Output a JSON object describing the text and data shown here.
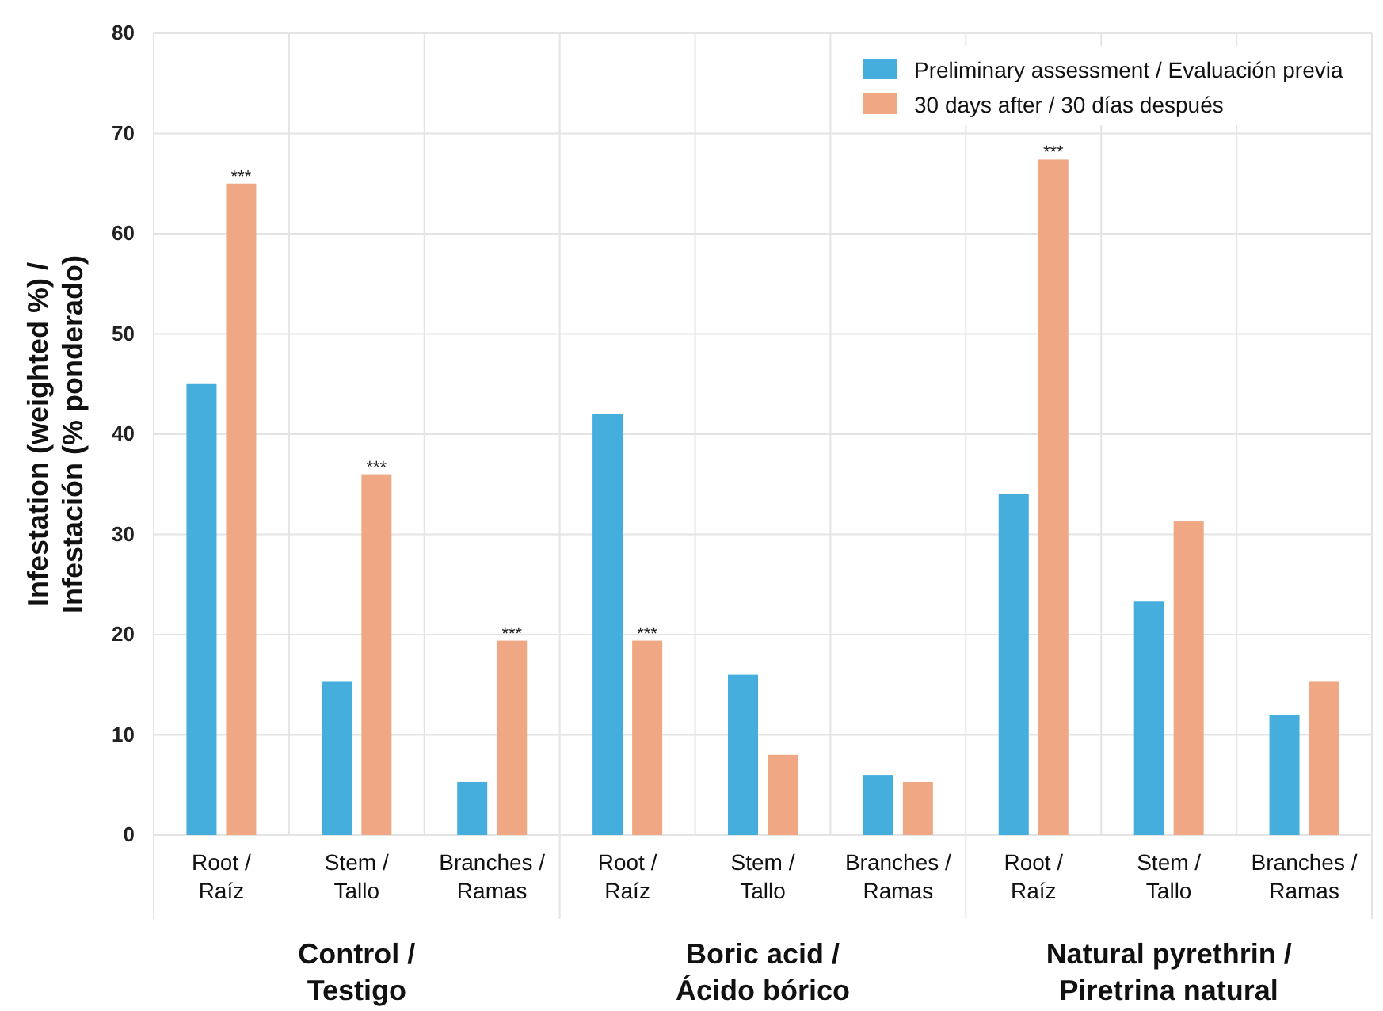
{
  "chart_data": {
    "type": "bar",
    "ylabel": "Infestation (weighted %) / Infestación (% ponderado)",
    "categories": [
      "Root / Raíz",
      "Stem / Tallo",
      "Branches / Ramas",
      "Root / Raíz",
      "Stem / Tallo",
      "Branches / Ramas",
      "Root / Raíz",
      "Stem / Tallo",
      "Branches / Ramas"
    ],
    "series": [
      {
        "name": "Preliminary assessment / Evaluación previa",
        "color": "#45aedd",
        "values": [
          45,
          15.3,
          5.3,
          42,
          16,
          6,
          34,
          23.3,
          12
        ]
      },
      {
        "name": "30 days after / 30 días después",
        "color": "#f0a884",
        "values": [
          65,
          36,
          19.4,
          19.4,
          8,
          5.3,
          67.4,
          31.3,
          15.3
        ],
        "value_labels": [
          "***",
          "***",
          "***",
          "***",
          null,
          null,
          "***",
          null,
          null
        ]
      }
    ],
    "annotations": [
      "Control / Testigo",
      "Boric acid / Ácido bórico",
      "Natural pyrethrin / Piretrina natural"
    ],
    "ylim": [
      0,
      80
    ],
    "yticks": [
      0,
      10,
      20,
      30,
      40,
      50,
      60,
      70,
      80
    ],
    "grid": true,
    "legend": "top right"
  }
}
